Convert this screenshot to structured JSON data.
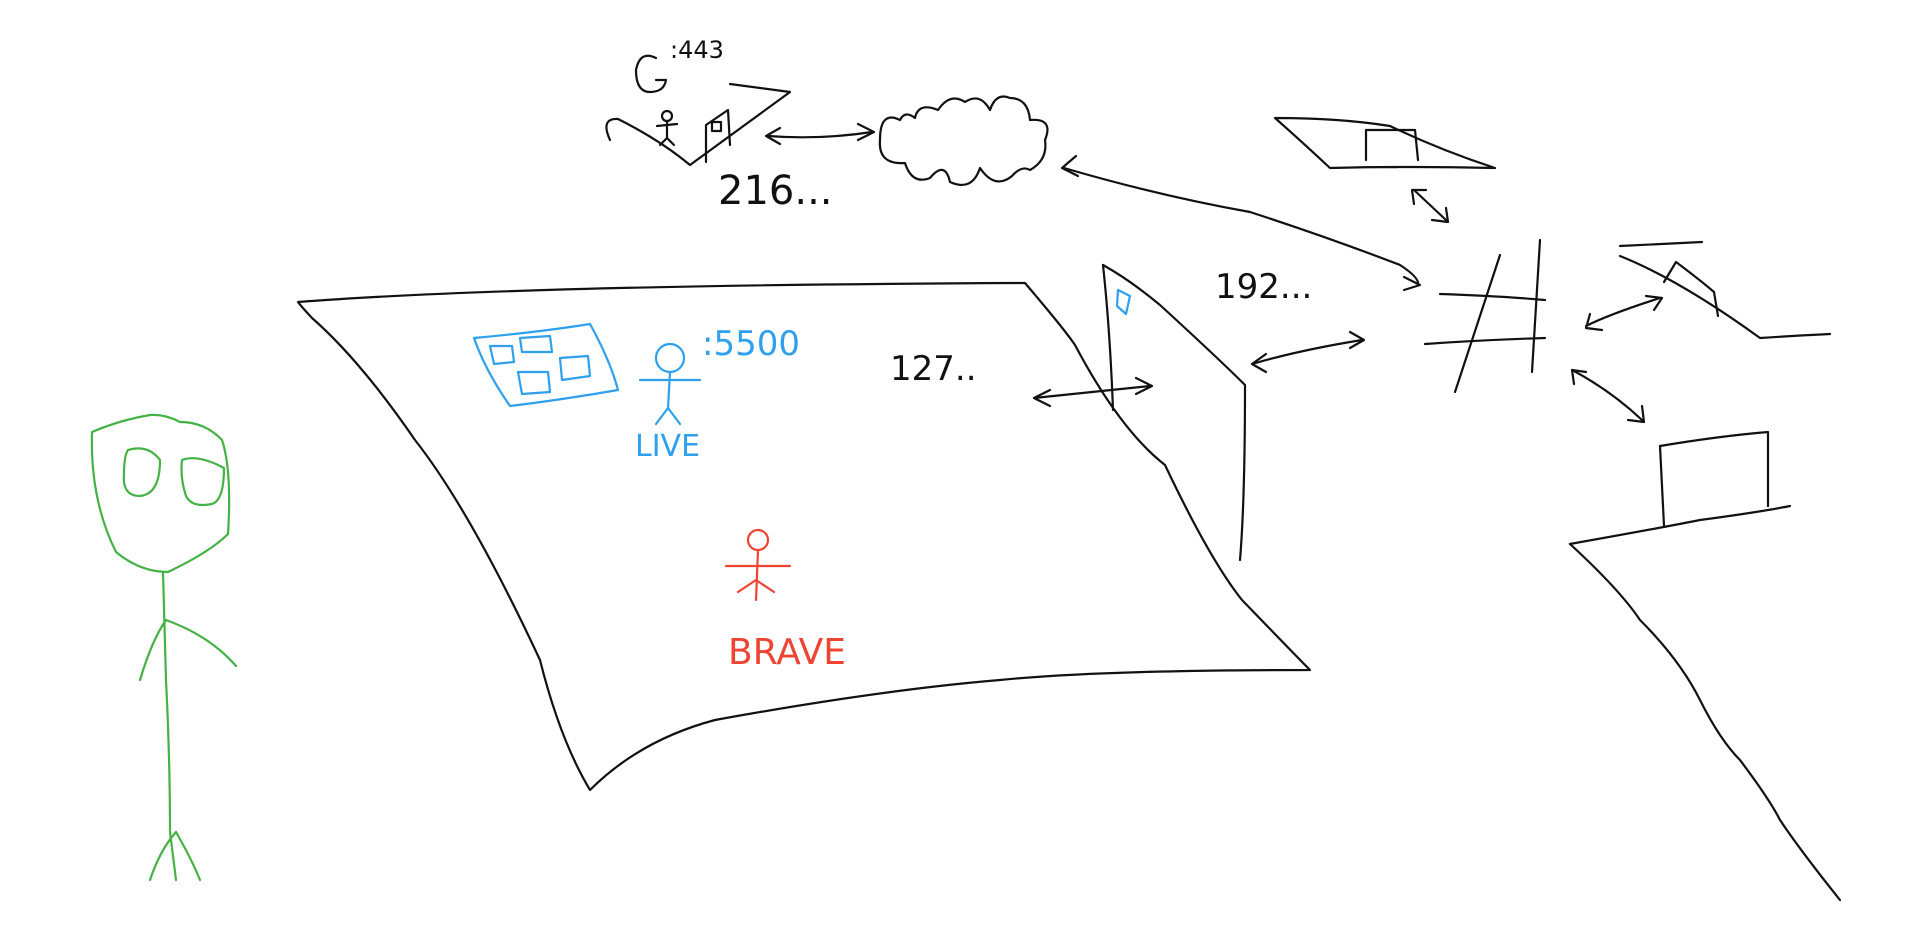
{
  "colors": {
    "ink": "#111111",
    "blue": "#2ea0ee",
    "red": "#ee4433",
    "green": "#44b244",
    "background": "#ffffff"
  },
  "labels": {
    "remote_port": ":443",
    "remote_ip": "216...",
    "local_port": ":5500",
    "local_live": "LIVE",
    "brave": "BRAVE",
    "local_ip": "127..",
    "router_ip": "192..."
  },
  "icons": [
    "clock-icon",
    "cloud-icon",
    "router-hash-icon",
    "person-icon",
    "browser-window-icon"
  ]
}
